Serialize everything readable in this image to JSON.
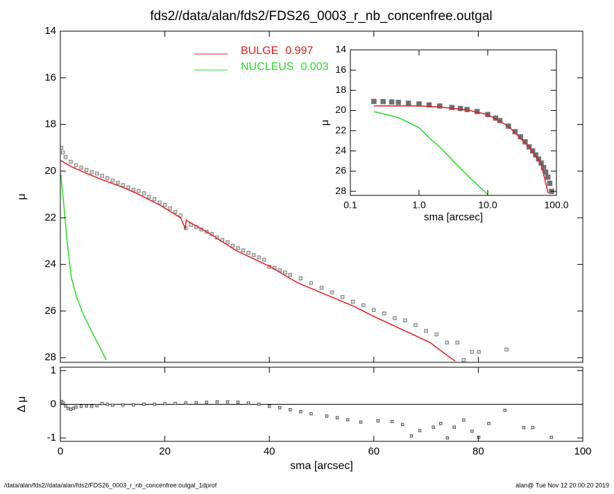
{
  "footer": {
    "left": "/data/alan/fds2//data/alan/fds2/FDS26_0003_r_nb_concenfree.outgal_1dprof",
    "right": "alan@  Tue Nov 12 20:00:20 2019"
  },
  "chart_data": [
    {
      "type": "scatter",
      "title": "fds2//data/alan/fds2/FDS26_0003_r_nb_concenfree.outgal",
      "ylabel": "μ",
      "xlim": [
        0,
        100
      ],
      "xticks": [
        0,
        20,
        40,
        60,
        80,
        100
      ],
      "ylim": [
        14,
        28.2
      ],
      "yticks": [
        14,
        16,
        18,
        20,
        22,
        24,
        26,
        28
      ],
      "y_inverted": true,
      "series": [
        {
          "mode": "markers",
          "color": "#808080",
          "x": [
            0.2,
            0.5,
            1,
            2,
            3,
            4,
            5,
            6,
            7,
            8,
            9,
            10,
            11,
            12,
            13,
            14,
            15,
            16,
            17,
            18,
            19,
            20,
            21,
            22,
            23,
            24,
            25,
            26,
            27,
            28,
            29,
            30,
            31,
            32,
            33,
            34,
            35,
            36,
            37,
            38,
            39,
            40,
            41,
            42,
            43,
            44,
            46,
            48,
            50,
            52,
            54,
            56,
            58,
            60,
            62,
            64,
            66,
            68,
            70,
            72,
            74,
            76,
            77.2,
            78.8,
            80.1,
            85.4
          ],
          "values": [
            19.0,
            19.2,
            19.4,
            19.6,
            19.75,
            19.85,
            19.95,
            20.05,
            20.1,
            20.2,
            20.3,
            20.4,
            20.5,
            20.6,
            20.7,
            20.8,
            20.85,
            20.95,
            21.1,
            21.2,
            21.35,
            21.45,
            21.6,
            21.75,
            21.9,
            22.45,
            22.3,
            22.4,
            22.5,
            22.6,
            22.7,
            22.85,
            22.95,
            23.05,
            23.2,
            23.3,
            23.4,
            23.5,
            23.6,
            23.7,
            23.8,
            24.1,
            24.15,
            24.25,
            24.35,
            24.45,
            24.6,
            24.8,
            25.0,
            25.2,
            25.4,
            25.6,
            25.75,
            25.95,
            26.1,
            26.3,
            26.4,
            26.6,
            26.85,
            27.0,
            27.35,
            27.35,
            28.1,
            27.75,
            27.75,
            27.65
          ]
        },
        {
          "mode": "lines",
          "name": "BULGE",
          "fraction": 0.997,
          "color": "#e41a1c",
          "x": [
            0.1,
            2,
            5,
            8.4,
            12,
            15,
            19,
            23,
            23.9,
            24.1,
            24.8,
            28,
            33.6,
            40.2,
            45.5,
            50.9,
            56.2,
            60.2,
            65.5,
            70.8,
            73.4,
            75.6
          ],
          "values": [
            19.55,
            19.8,
            20.1,
            20.4,
            20.7,
            21.0,
            21.45,
            22.0,
            22.45,
            22.1,
            22.2,
            22.6,
            23.4,
            24.1,
            24.8,
            25.3,
            25.8,
            26.25,
            26.8,
            27.35,
            27.8,
            28.15
          ]
        },
        {
          "mode": "lines",
          "name": "NUCLEUS",
          "fraction": 0.003,
          "color": "#22dd22",
          "x": [
            0.1,
            0.7,
            1.3,
            2.1,
            3.1,
            4.4,
            6.4,
            8.8
          ],
          "values": [
            20.15,
            21.55,
            23.05,
            24.55,
            25.4,
            26.15,
            27.05,
            28.1
          ]
        }
      ]
    },
    {
      "type": "scatter",
      "ylabel": "Δ μ",
      "xlabel": "sma [arcsec]",
      "xlim": [
        0,
        100
      ],
      "xticks": [
        0,
        20,
        40,
        60,
        80,
        100
      ],
      "ylim": [
        -1.1,
        1.1
      ],
      "yticks": [
        1,
        0,
        -1
      ],
      "reference_line": 0,
      "series": [
        {
          "mode": "markers",
          "color": "#555555",
          "x": [
            0.2,
            0.5,
            1,
            1.5,
            2,
            2.5,
            3,
            4,
            5,
            6,
            7,
            8,
            9,
            10,
            12,
            14,
            16,
            18,
            20,
            22,
            24,
            26,
            28,
            30,
            32,
            34,
            36,
            38,
            40,
            42,
            44,
            46,
            48,
            51,
            53,
            55,
            57.5,
            60.8,
            63.5,
            65.5,
            67.2,
            68.8,
            71.4,
            72.8,
            74.1,
            75.4,
            77.2,
            78.8,
            80.1,
            82,
            85.1,
            88.7,
            90.4,
            94
          ],
          "values": [
            0.08,
            0.05,
            -0.05,
            -0.12,
            -0.15,
            -0.12,
            -0.08,
            -0.06,
            -0.05,
            -0.06,
            -0.04,
            0.02,
            0.0,
            -0.03,
            -0.02,
            -0.02,
            0.0,
            0.0,
            0.02,
            0.03,
            0.04,
            0.05,
            0.06,
            0.07,
            0.07,
            0.06,
            0.04,
            0.0,
            -0.06,
            -0.1,
            -0.16,
            -0.22,
            -0.28,
            -0.35,
            -0.4,
            -0.46,
            -0.53,
            -0.49,
            -0.51,
            -0.6,
            -0.94,
            -0.78,
            -0.68,
            -0.57,
            -1.0,
            -0.68,
            -0.47,
            -0.8,
            -0.98,
            -0.57,
            -0.18,
            -0.69,
            -0.69,
            -0.98
          ]
        }
      ]
    },
    {
      "type": "scatter",
      "ylabel": "μ",
      "xlabel": "sma [arcsec]",
      "xlog": true,
      "xlim": [
        0.1,
        100
      ],
      "xticks": [
        0.1,
        {
          "value": 1,
          "label": "1.0"
        },
        {
          "value": 10,
          "label": "10.0"
        },
        {
          "value": 100,
          "label": "100.0"
        }
      ],
      "ylim": [
        14,
        28.4
      ],
      "yticks": [
        14,
        16,
        18,
        20,
        22,
        24,
        26,
        28
      ],
      "y_inverted": true,
      "series": [
        {
          "mode": "markers",
          "color": "#707070",
          "x": [
            0.22,
            0.3,
            0.4,
            0.5,
            0.7,
            1,
            1.4,
            2,
            3,
            4,
            5,
            7,
            10,
            13,
            15,
            20,
            25,
            30,
            35,
            40,
            45,
            50,
            55,
            60,
            65,
            70,
            75,
            80,
            85
          ],
          "values": [
            19.1,
            19.12,
            19.15,
            19.2,
            19.28,
            19.35,
            19.45,
            19.55,
            19.7,
            19.8,
            19.9,
            20.1,
            20.4,
            20.75,
            21.0,
            21.55,
            22.1,
            22.6,
            23.1,
            23.6,
            24.0,
            24.4,
            24.8,
            25.2,
            25.65,
            26.1,
            26.6,
            27.2,
            28.0
          ]
        },
        {
          "mode": "lines",
          "color": "#e41a1c",
          "x": [
            0.22,
            1,
            2,
            5,
            10,
            20,
            40,
            60,
            76
          ],
          "values": [
            19.55,
            19.55,
            19.65,
            19.95,
            20.4,
            21.55,
            23.6,
            25.3,
            28.2
          ]
        },
        {
          "mode": "lines",
          "color": "#22dd22",
          "x": [
            0.22,
            0.5,
            1,
            1.45,
            2,
            3.7,
            6,
            10
          ],
          "values": [
            20.1,
            20.7,
            21.7,
            22.8,
            23.6,
            25.5,
            26.9,
            28.3
          ]
        }
      ]
    }
  ]
}
